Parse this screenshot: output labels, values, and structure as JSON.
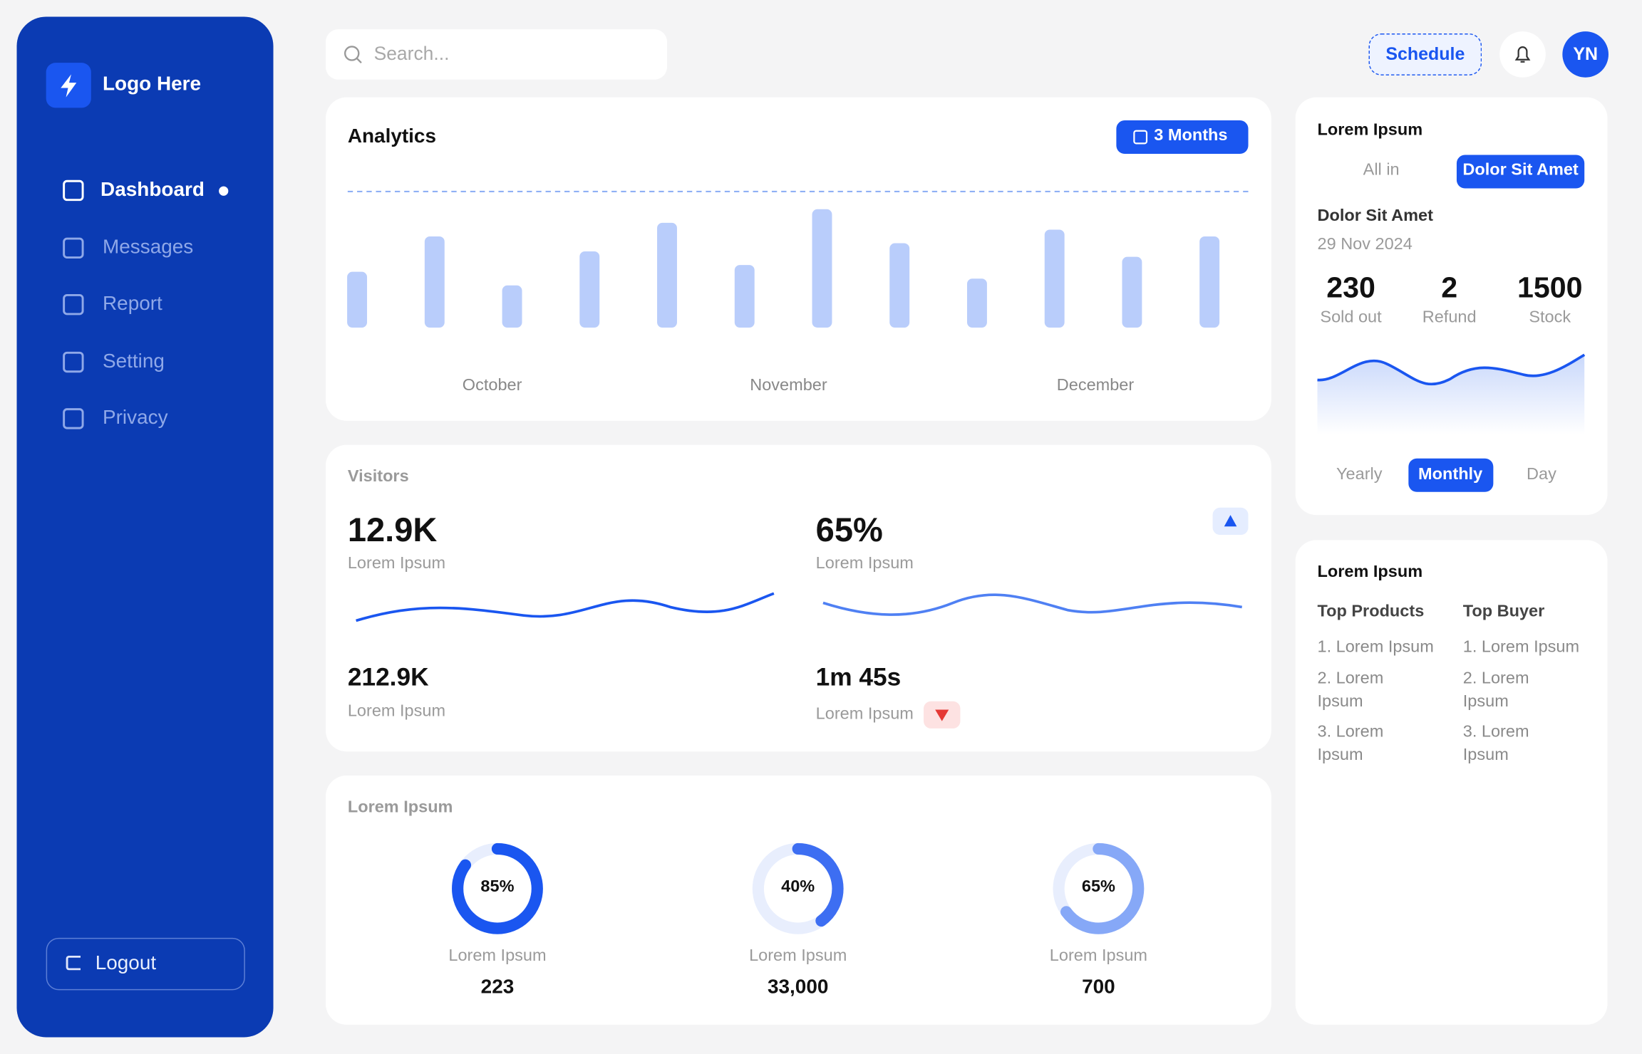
{
  "sidebar": {
    "logo": "Logo Here",
    "nav": [
      "Dashboard",
      "Messages",
      "Report",
      "Setting",
      "Privacy"
    ],
    "logout": "Logout"
  },
  "header": {
    "search": "Search...",
    "schedule": "Schedule",
    "avatar": "YN"
  },
  "analytics": {
    "title": "Analytics",
    "range": "3 Months",
    "months": [
      "October",
      "November",
      "December"
    ],
    "chart_data": {
      "type": "bar",
      "values": [
        41,
        67,
        31,
        56,
        77,
        46,
        87,
        62,
        36,
        72,
        52,
        67
      ],
      "color": "#b9cdfb"
    }
  },
  "visitors": {
    "title": "Visitors",
    "stats": [
      {
        "value": "12.9K",
        "label": "Lorem Ipsum"
      },
      {
        "value": "65%",
        "label": "Lorem Ipsum"
      },
      {
        "value": "212.9K",
        "label": "Lorem Ipsum"
      },
      {
        "value": "1m 45s",
        "label": "Lorem Ipsum"
      }
    ]
  },
  "progress": {
    "title": "Lorem Ipsum",
    "items": [
      {
        "percent": {
          "value": 85,
          "label": "85%"
        },
        "color": "#1a56f0",
        "label": "Lorem Ipsum",
        "total": "223"
      },
      {
        "percent": {
          "value": 40,
          "label": "40%"
        },
        "color": "#3d6ef2",
        "label": "Lorem Ipsum",
        "total": "33,000"
      },
      {
        "percent": {
          "value": 65,
          "label": "65%"
        },
        "color": "#86a8f7",
        "label": "Lorem Ipsum",
        "total": "700"
      }
    ]
  },
  "summary": {
    "title": "Lorem Ipsum",
    "tabs": [
      "All in",
      "Dolor Sit Amet"
    ],
    "subtitle": "Dolor Sit Amet",
    "date": "29 Nov 2024",
    "stats": [
      {
        "value": "230",
        "label": "Sold out"
      },
      {
        "value": "2",
        "label": "Refund"
      },
      {
        "value": "1500",
        "label": "Stock"
      }
    ],
    "periods": [
      "Yearly",
      "Monthly",
      "Day"
    ]
  },
  "top": {
    "title": "Lorem Ipsum",
    "columns": [
      {
        "heading": "Top Products",
        "items": [
          "1. Lorem Ipsum",
          "2. Lorem Ipsum",
          "3. Lorem Ipsum"
        ]
      },
      {
        "heading": "Top Buyer",
        "items": [
          "1. Lorem Ipsum",
          "2. Lorem Ipsum",
          "3. Lorem Ipsum"
        ]
      }
    ]
  }
}
